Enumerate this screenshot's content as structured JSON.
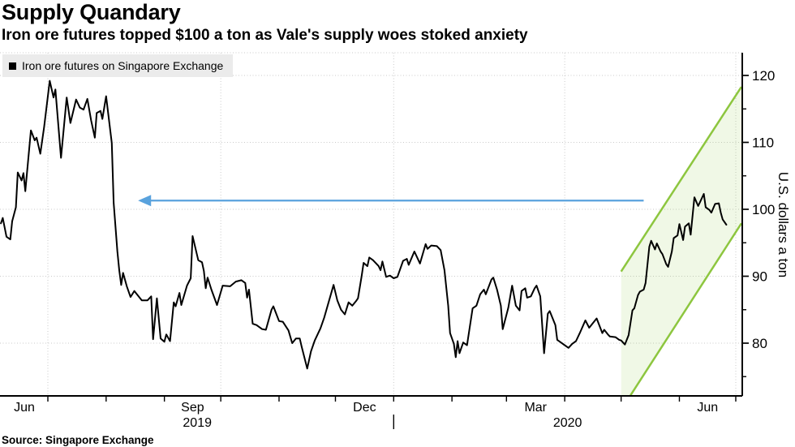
{
  "header": {
    "title": "Supply Quandary",
    "subtitle": "Iron ore futures topped $100 a ton as Vale's supply woes stoked anxiety"
  },
  "legend": {
    "label": "Iron ore futures on Singapore Exchange",
    "swatch_color": "#000000"
  },
  "source": "Source: Singapore Exchange",
  "y_axis": {
    "title": "U.S. dollars a ton",
    "major_ticks": [
      80,
      90,
      100,
      110,
      120
    ],
    "minor_ticks": [
      75,
      85,
      95,
      105,
      115
    ],
    "grid_values": [
      80,
      90,
      100,
      110,
      120
    ]
  },
  "x_axis": {
    "anchor_date": "2019-07-01",
    "month_tick_dates": [
      "2019-07-01",
      "2019-08-01",
      "2019-09-01",
      "2019-10-01",
      "2019-11-01",
      "2019-12-01",
      "2020-01-01",
      "2020-02-01",
      "2020-03-01",
      "2020-04-01",
      "2020-05-01",
      "2020-06-01",
      "2020-07-01"
    ],
    "grid_dates": [
      "2019-07-01",
      "2019-10-01",
      "2020-01-01",
      "2020-04-01",
      "2020-07-01"
    ],
    "month_labels": [
      {
        "text": "Jun",
        "span": [
          "2019-06-06",
          "2019-07-01"
        ]
      },
      {
        "text": "Sep",
        "span": [
          "2019-09-01",
          "2019-10-01"
        ]
      },
      {
        "text": "Dec",
        "span": [
          "2019-12-01",
          "2020-01-01"
        ]
      },
      {
        "text": "Mar",
        "span": [
          "2020-03-01",
          "2020-04-01"
        ]
      },
      {
        "text": "Jun",
        "span": [
          "2020-06-01",
          "2020-07-01"
        ]
      }
    ],
    "year_labels": [
      {
        "text": "2019",
        "span": [
          "2019-06-06",
          "2020-01-01"
        ]
      },
      {
        "text": "2020",
        "span": [
          "2020-01-01",
          "2020-07-04"
        ]
      }
    ],
    "year_divider_date": "2020-01-01"
  },
  "colors": {
    "series": "#000000",
    "grid": "#c9c9c9",
    "axis": "#000000",
    "arrow": "#59a2dd",
    "channel": "#8dc63f",
    "legend_bg": "#ebebeb",
    "background": "#ffffff"
  },
  "chart_data": {
    "type": "line",
    "title": "Supply Quandary",
    "subtitle": "Iron ore futures topped $100 a ton as Vale's supply woes stoked anxiety",
    "xlabel": "",
    "ylabel": "U.S. dollars a ton",
    "ylim": [
      72,
      123.5
    ],
    "x_range": [
      "2019-06-06",
      "2020-07-04"
    ],
    "grid": true,
    "legend_position": "top-left",
    "series": [
      {
        "name": "Iron ore futures on Singapore Exchange",
        "color": "#000000",
        "points": [
          [
            "2019-06-06",
            97.9
          ],
          [
            "2019-06-07",
            98.7
          ],
          [
            "2019-06-09",
            95.9
          ],
          [
            "2019-06-11",
            95.5
          ],
          [
            "2019-06-12",
            98.2
          ],
          [
            "2019-06-14",
            100.3
          ],
          [
            "2019-06-15",
            105.5
          ],
          [
            "2019-06-17",
            104.3
          ],
          [
            "2019-06-18",
            105.4
          ],
          [
            "2019-06-19",
            102.7
          ],
          [
            "2019-06-22",
            111.8
          ],
          [
            "2019-06-24",
            110.3
          ],
          [
            "2019-06-25",
            110.7
          ],
          [
            "2019-06-27",
            108.3
          ],
          [
            "2019-06-29",
            112.3
          ],
          [
            "2019-07-02",
            119.2
          ],
          [
            "2019-07-04",
            116.7
          ],
          [
            "2019-07-05",
            117.9
          ],
          [
            "2019-07-08",
            107.7
          ],
          [
            "2019-07-11",
            116.7
          ],
          [
            "2019-07-13",
            112.9
          ],
          [
            "2019-07-16",
            116.4
          ],
          [
            "2019-07-18",
            115.2
          ],
          [
            "2019-07-20",
            114.9
          ],
          [
            "2019-07-22",
            116.5
          ],
          [
            "2019-07-24",
            113.3
          ],
          [
            "2019-07-26",
            110.7
          ],
          [
            "2019-07-27",
            114.4
          ],
          [
            "2019-07-29",
            114.7
          ],
          [
            "2019-07-30",
            113.5
          ],
          [
            "2019-08-01",
            116.9
          ],
          [
            "2019-08-04",
            109.9
          ],
          [
            "2019-08-05",
            101.0
          ],
          [
            "2019-08-07",
            93.7
          ],
          [
            "2019-08-08",
            90.9
          ],
          [
            "2019-08-09",
            88.7
          ],
          [
            "2019-08-10",
            90.5
          ],
          [
            "2019-08-12",
            88.5
          ],
          [
            "2019-08-14",
            86.9
          ],
          [
            "2019-08-16",
            87.8
          ],
          [
            "2019-08-20",
            86.4
          ],
          [
            "2019-08-23",
            86.4
          ],
          [
            "2019-08-25",
            87.0
          ],
          [
            "2019-08-26",
            80.6
          ],
          [
            "2019-08-28",
            86.7
          ],
          [
            "2019-08-30",
            80.7
          ],
          [
            "2019-09-01",
            80.2
          ],
          [
            "2019-09-02",
            81.3
          ],
          [
            "2019-09-04",
            80.3
          ],
          [
            "2019-09-06",
            86.1
          ],
          [
            "2019-09-07",
            85.5
          ],
          [
            "2019-09-09",
            87.5
          ],
          [
            "2019-09-10",
            85.7
          ],
          [
            "2019-09-13",
            88.6
          ],
          [
            "2019-09-15",
            89.7
          ],
          [
            "2019-09-16",
            96.0
          ],
          [
            "2019-09-19",
            92.4
          ],
          [
            "2019-09-21",
            92.1
          ],
          [
            "2019-09-22",
            90.8
          ],
          [
            "2019-09-23",
            88.2
          ],
          [
            "2019-09-24",
            89.8
          ],
          [
            "2019-09-26",
            88.0
          ],
          [
            "2019-09-29",
            85.7
          ],
          [
            "2019-10-02",
            88.6
          ],
          [
            "2019-10-06",
            88.5
          ],
          [
            "2019-10-09",
            89.2
          ],
          [
            "2019-10-12",
            89.4
          ],
          [
            "2019-10-14",
            89.0
          ],
          [
            "2019-10-15",
            86.8
          ],
          [
            "2019-10-16",
            88.0
          ],
          [
            "2019-10-18",
            82.9
          ],
          [
            "2019-10-20",
            82.7
          ],
          [
            "2019-10-23",
            82.1
          ],
          [
            "2019-10-25",
            82.0
          ],
          [
            "2019-10-28",
            85.0
          ],
          [
            "2019-10-29",
            85.5
          ],
          [
            "2019-11-01",
            83.3
          ],
          [
            "2019-11-03",
            83.2
          ],
          [
            "2019-11-06",
            81.9
          ],
          [
            "2019-11-08",
            80.0
          ],
          [
            "2019-11-10",
            80.7
          ],
          [
            "2019-11-12",
            80.7
          ],
          [
            "2019-11-13",
            79.5
          ],
          [
            "2019-11-16",
            76.2
          ],
          [
            "2019-11-18",
            78.8
          ],
          [
            "2019-11-20",
            80.4
          ],
          [
            "2019-11-23",
            82.2
          ],
          [
            "2019-11-25",
            83.8
          ],
          [
            "2019-11-30",
            88.7
          ],
          [
            "2019-12-02",
            86.4
          ],
          [
            "2019-12-04",
            85.0
          ],
          [
            "2019-12-06",
            84.3
          ],
          [
            "2019-12-08",
            86.1
          ],
          [
            "2019-12-10",
            85.6
          ],
          [
            "2019-12-12",
            86.3
          ],
          [
            "2019-12-13",
            86.7
          ],
          [
            "2019-12-15",
            90.1
          ],
          [
            "2019-12-16",
            92.0
          ],
          [
            "2019-12-18",
            91.5
          ],
          [
            "2019-12-19",
            92.8
          ],
          [
            "2019-12-21",
            92.4
          ],
          [
            "2019-12-24",
            91.5
          ],
          [
            "2019-12-25",
            90.9
          ],
          [
            "2019-12-26",
            92.2
          ],
          [
            "2019-12-28",
            89.9
          ],
          [
            "2019-12-30",
            90.1
          ],
          [
            "2020-01-01",
            89.7
          ],
          [
            "2020-01-03",
            89.9
          ],
          [
            "2020-01-06",
            92.3
          ],
          [
            "2020-01-08",
            92.6
          ],
          [
            "2020-01-09",
            91.7
          ],
          [
            "2020-01-12",
            93.7
          ],
          [
            "2020-01-15",
            91.9
          ],
          [
            "2020-01-18",
            94.8
          ],
          [
            "2020-01-19",
            94.1
          ],
          [
            "2020-01-21",
            94.6
          ],
          [
            "2020-01-24",
            94.5
          ],
          [
            "2020-01-26",
            93.9
          ],
          [
            "2020-01-28",
            90.9
          ],
          [
            "2020-01-30",
            85.6
          ],
          [
            "2020-01-31",
            81.5
          ],
          [
            "2020-02-02",
            79.9
          ],
          [
            "2020-02-03",
            77.9
          ],
          [
            "2020-02-04",
            80.3
          ],
          [
            "2020-02-05",
            78.5
          ],
          [
            "2020-02-07",
            80.1
          ],
          [
            "2020-02-09",
            79.7
          ],
          [
            "2020-02-12",
            85.2
          ],
          [
            "2020-02-14",
            85.6
          ],
          [
            "2020-02-16",
            87.3
          ],
          [
            "2020-02-18",
            88.0
          ],
          [
            "2020-02-19",
            87.3
          ],
          [
            "2020-02-22",
            89.5
          ],
          [
            "2020-02-23",
            89.8
          ],
          [
            "2020-02-25",
            88.0
          ],
          [
            "2020-02-27",
            85.6
          ],
          [
            "2020-02-28",
            82.1
          ],
          [
            "2020-03-02",
            85.3
          ],
          [
            "2020-03-04",
            88.6
          ],
          [
            "2020-03-06",
            85.6
          ],
          [
            "2020-03-08",
            84.9
          ],
          [
            "2020-03-09",
            87.8
          ],
          [
            "2020-03-11",
            88.2
          ],
          [
            "2020-03-12",
            86.8
          ],
          [
            "2020-03-14",
            87.0
          ],
          [
            "2020-03-16",
            88.2
          ],
          [
            "2020-03-17",
            88.6
          ],
          [
            "2020-03-19",
            87.0
          ],
          [
            "2020-03-21",
            78.5
          ],
          [
            "2020-03-23",
            84.4
          ],
          [
            "2020-03-24",
            84.8
          ],
          [
            "2020-03-27",
            82.7
          ],
          [
            "2020-03-28",
            80.5
          ],
          [
            "2020-03-30",
            80.1
          ],
          [
            "2020-04-01",
            79.7
          ],
          [
            "2020-04-03",
            79.3
          ],
          [
            "2020-04-05",
            79.9
          ],
          [
            "2020-04-07",
            80.3
          ],
          [
            "2020-04-09",
            81.5
          ],
          [
            "2020-04-12",
            83.4
          ],
          [
            "2020-04-14",
            82.3
          ],
          [
            "2020-04-16",
            83.0
          ],
          [
            "2020-04-18",
            83.7
          ],
          [
            "2020-04-21",
            81.5
          ],
          [
            "2020-04-22",
            82.0
          ],
          [
            "2020-04-24",
            81.3
          ],
          [
            "2020-04-25",
            81.0
          ],
          [
            "2020-04-28",
            80.9
          ],
          [
            "2020-04-30",
            80.5
          ],
          [
            "2020-05-01",
            80.4
          ],
          [
            "2020-05-03",
            79.8
          ],
          [
            "2020-05-05",
            81.2
          ],
          [
            "2020-05-07",
            84.9
          ],
          [
            "2020-05-08",
            85.2
          ],
          [
            "2020-05-10",
            87.2
          ],
          [
            "2020-05-11",
            87.7
          ],
          [
            "2020-05-13",
            88.0
          ],
          [
            "2020-05-14",
            89.0
          ],
          [
            "2020-05-16",
            94.4
          ],
          [
            "2020-05-17",
            95.3
          ],
          [
            "2020-05-19",
            94.0
          ],
          [
            "2020-05-20",
            94.9
          ],
          [
            "2020-05-22",
            93.7
          ],
          [
            "2020-05-23",
            93.3
          ],
          [
            "2020-05-25",
            91.8
          ],
          [
            "2020-05-26",
            91.4
          ],
          [
            "2020-05-28",
            93.7
          ],
          [
            "2020-05-29",
            95.7
          ],
          [
            "2020-05-31",
            96.1
          ],
          [
            "2020-06-01",
            97.8
          ],
          [
            "2020-06-03",
            95.4
          ],
          [
            "2020-06-04",
            97.4
          ],
          [
            "2020-06-06",
            97.9
          ],
          [
            "2020-06-07",
            96.2
          ],
          [
            "2020-06-09",
            101.8
          ],
          [
            "2020-06-11",
            100.5
          ],
          [
            "2020-06-12",
            101.1
          ],
          [
            "2020-06-14",
            102.3
          ],
          [
            "2020-06-15",
            100.3
          ],
          [
            "2020-06-17",
            99.9
          ],
          [
            "2020-06-18",
            99.5
          ],
          [
            "2020-06-20",
            100.8
          ],
          [
            "2020-06-22",
            100.9
          ],
          [
            "2020-06-23",
            99.5
          ],
          [
            "2020-06-24",
            98.5
          ],
          [
            "2020-06-26",
            97.7
          ]
        ]
      }
    ],
    "annotations": {
      "arrow": {
        "type": "horizontal-arrow-left",
        "color": "#59a2dd",
        "value": 101.3,
        "from_date": "2020-05-13",
        "to_date": "2019-08-18"
      },
      "channel": {
        "type": "rising-channel-highlight",
        "color": "#8dc63f",
        "fill_opacity": 0.13,
        "top_line": [
          [
            "2020-05-01",
            90.7
          ],
          [
            "2020-07-04",
            118.3
          ]
        ],
        "bottom_line": [
          [
            "2020-05-06",
            72.2
          ],
          [
            "2020-07-04",
            97.9
          ]
        ]
      }
    }
  }
}
